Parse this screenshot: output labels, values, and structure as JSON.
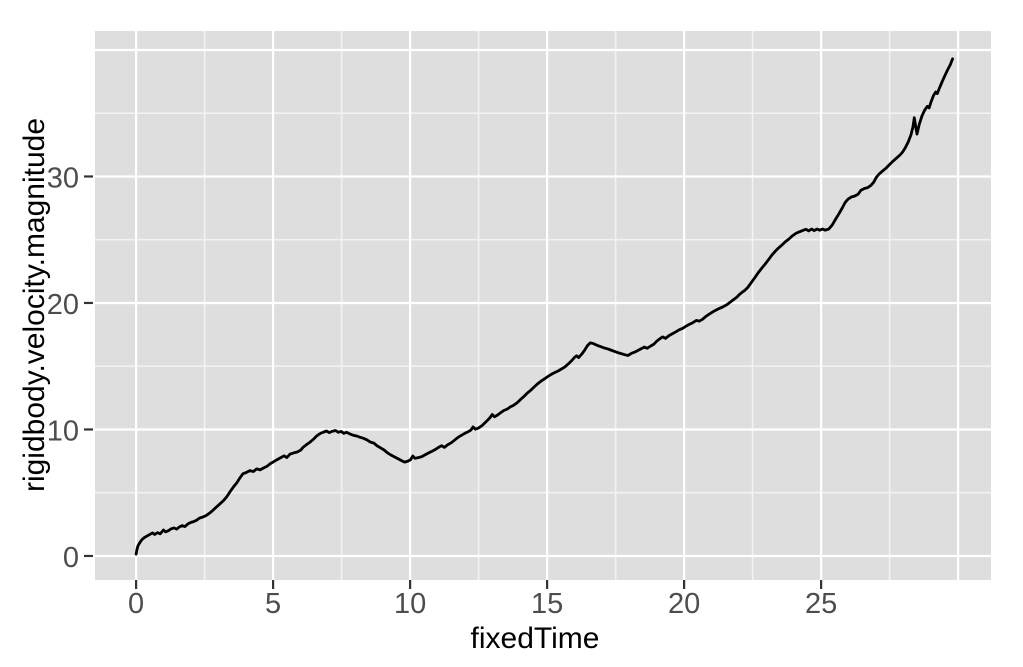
{
  "chart_data": {
    "type": "line",
    "title": "",
    "xlabel": "fixedTime",
    "ylabel": "rigidbody.velocity.magnitude",
    "legend": "none",
    "grid": "on",
    "xlim": [
      -1.5,
      31.2
    ],
    "ylim": [
      -1.9,
      41.5
    ],
    "x_ticks": {
      "values": [
        0,
        5,
        10,
        15,
        20,
        25
      ],
      "labels": [
        "0",
        "5",
        "10",
        "15",
        "20",
        "25"
      ]
    },
    "y_ticks": {
      "values": [
        0,
        10,
        20,
        30
      ],
      "labels": [
        "0",
        "10",
        "20",
        "30"
      ]
    },
    "x_grid_major": [
      0,
      5,
      10,
      15,
      20,
      25,
      30
    ],
    "x_grid_minor": [
      2.5,
      7.5,
      12.5,
      17.5,
      22.5,
      27.5
    ],
    "y_grid_major": [
      0,
      10,
      20,
      30,
      40
    ],
    "y_grid_minor": [
      5,
      15,
      25,
      35
    ],
    "colors": {
      "panel_bg": "#dedede",
      "grid_major": "#ffffff",
      "grid_minor": "#f2f2f2",
      "line": "#000000",
      "tick_mark": "#333333",
      "tick_text": "#4d4d4d",
      "axis_title_text": "#000000",
      "page_bg": "#ffffff"
    },
    "series": [
      {
        "name": "rigidbody.velocity.magnitude",
        "points": [
          [
            0,
            0.15
          ],
          [
            0.03,
            0.5
          ],
          [
            0.07,
            0.8
          ],
          [
            0.12,
            1.0
          ],
          [
            0.2,
            1.26
          ],
          [
            0.3,
            1.45
          ],
          [
            0.42,
            1.6
          ],
          [
            0.52,
            1.72
          ],
          [
            0.6,
            1.82
          ],
          [
            0.68,
            1.7
          ],
          [
            0.78,
            1.85
          ],
          [
            0.88,
            1.75
          ],
          [
            1.0,
            2.05
          ],
          [
            1.08,
            1.9
          ],
          [
            1.18,
            2.0
          ],
          [
            1.28,
            2.15
          ],
          [
            1.38,
            2.22
          ],
          [
            1.48,
            2.12
          ],
          [
            1.58,
            2.3
          ],
          [
            1.68,
            2.4
          ],
          [
            1.78,
            2.32
          ],
          [
            1.9,
            2.55
          ],
          [
            2.0,
            2.65
          ],
          [
            2.1,
            2.72
          ],
          [
            2.2,
            2.82
          ],
          [
            2.32,
            3.0
          ],
          [
            2.44,
            3.08
          ],
          [
            2.56,
            3.2
          ],
          [
            2.68,
            3.38
          ],
          [
            2.8,
            3.6
          ],
          [
            2.92,
            3.85
          ],
          [
            3.05,
            4.1
          ],
          [
            3.18,
            4.35
          ],
          [
            3.3,
            4.65
          ],
          [
            3.42,
            5.05
          ],
          [
            3.55,
            5.45
          ],
          [
            3.68,
            5.8
          ],
          [
            3.78,
            6.15
          ],
          [
            3.9,
            6.5
          ],
          [
            4.02,
            6.6
          ],
          [
            4.15,
            6.75
          ],
          [
            4.28,
            6.68
          ],
          [
            4.4,
            6.88
          ],
          [
            4.52,
            6.8
          ],
          [
            4.65,
            6.95
          ],
          [
            4.78,
            7.1
          ],
          [
            4.9,
            7.3
          ],
          [
            5.02,
            7.45
          ],
          [
            5.15,
            7.62
          ],
          [
            5.28,
            7.78
          ],
          [
            5.4,
            7.92
          ],
          [
            5.5,
            7.78
          ],
          [
            5.62,
            8.05
          ],
          [
            5.75,
            8.15
          ],
          [
            5.88,
            8.22
          ],
          [
            6.0,
            8.35
          ],
          [
            6.1,
            8.6
          ],
          [
            6.22,
            8.8
          ],
          [
            6.35,
            9.0
          ],
          [
            6.48,
            9.25
          ],
          [
            6.6,
            9.5
          ],
          [
            6.72,
            9.68
          ],
          [
            6.85,
            9.8
          ],
          [
            6.95,
            9.88
          ],
          [
            7.05,
            9.75
          ],
          [
            7.15,
            9.85
          ],
          [
            7.28,
            9.92
          ],
          [
            7.38,
            9.78
          ],
          [
            7.48,
            9.85
          ],
          [
            7.58,
            9.7
          ],
          [
            7.68,
            9.78
          ],
          [
            7.8,
            9.65
          ],
          [
            7.92,
            9.55
          ],
          [
            8.05,
            9.48
          ],
          [
            8.18,
            9.38
          ],
          [
            8.3,
            9.3
          ],
          [
            8.42,
            9.18
          ],
          [
            8.55,
            9.0
          ],
          [
            8.68,
            8.92
          ],
          [
            8.8,
            8.7
          ],
          [
            8.92,
            8.55
          ],
          [
            9.05,
            8.38
          ],
          [
            9.18,
            8.15
          ],
          [
            9.3,
            7.98
          ],
          [
            9.42,
            7.85
          ],
          [
            9.55,
            7.7
          ],
          [
            9.68,
            7.55
          ],
          [
            9.8,
            7.42
          ],
          [
            9.92,
            7.5
          ],
          [
            10.02,
            7.62
          ],
          [
            10.1,
            7.9
          ],
          [
            10.18,
            7.72
          ],
          [
            10.3,
            7.78
          ],
          [
            10.42,
            7.85
          ],
          [
            10.55,
            8.0
          ],
          [
            10.68,
            8.15
          ],
          [
            10.8,
            8.28
          ],
          [
            10.92,
            8.42
          ],
          [
            11.05,
            8.6
          ],
          [
            11.15,
            8.72
          ],
          [
            11.25,
            8.58
          ],
          [
            11.38,
            8.8
          ],
          [
            11.5,
            8.95
          ],
          [
            11.62,
            9.15
          ],
          [
            11.75,
            9.38
          ],
          [
            11.88,
            9.55
          ],
          [
            12.0,
            9.7
          ],
          [
            12.12,
            9.82
          ],
          [
            12.22,
            9.95
          ],
          [
            12.3,
            10.2
          ],
          [
            12.38,
            10.02
          ],
          [
            12.5,
            10.12
          ],
          [
            12.62,
            10.3
          ],
          [
            12.72,
            10.5
          ],
          [
            12.82,
            10.72
          ],
          [
            12.92,
            10.95
          ],
          [
            13.0,
            11.18
          ],
          [
            13.08,
            11.0
          ],
          [
            13.2,
            11.15
          ],
          [
            13.3,
            11.32
          ],
          [
            13.42,
            11.5
          ],
          [
            13.55,
            11.62
          ],
          [
            13.65,
            11.78
          ],
          [
            13.78,
            11.92
          ],
          [
            13.9,
            12.1
          ],
          [
            14.02,
            12.35
          ],
          [
            14.15,
            12.6
          ],
          [
            14.28,
            12.88
          ],
          [
            14.4,
            13.1
          ],
          [
            14.52,
            13.35
          ],
          [
            14.65,
            13.6
          ],
          [
            14.78,
            13.82
          ],
          [
            14.9,
            14.0
          ],
          [
            15.02,
            14.18
          ],
          [
            15.15,
            14.35
          ],
          [
            15.28,
            14.5
          ],
          [
            15.4,
            14.62
          ],
          [
            15.52,
            14.78
          ],
          [
            15.65,
            14.95
          ],
          [
            15.78,
            15.2
          ],
          [
            15.9,
            15.45
          ],
          [
            16.0,
            15.7
          ],
          [
            16.08,
            15.82
          ],
          [
            16.15,
            15.68
          ],
          [
            16.28,
            16.0
          ],
          [
            16.38,
            16.3
          ],
          [
            16.48,
            16.65
          ],
          [
            16.58,
            16.85
          ],
          [
            16.7,
            16.78
          ],
          [
            16.82,
            16.65
          ],
          [
            16.95,
            16.55
          ],
          [
            17.08,
            16.45
          ],
          [
            17.2,
            16.38
          ],
          [
            17.32,
            16.28
          ],
          [
            17.45,
            16.18
          ],
          [
            17.58,
            16.08
          ],
          [
            17.7,
            16.0
          ],
          [
            17.85,
            15.9
          ],
          [
            17.95,
            15.85
          ],
          [
            18.08,
            16.02
          ],
          [
            18.2,
            16.12
          ],
          [
            18.32,
            16.25
          ],
          [
            18.45,
            16.4
          ],
          [
            18.55,
            16.52
          ],
          [
            18.65,
            16.42
          ],
          [
            18.78,
            16.6
          ],
          [
            18.9,
            16.75
          ],
          [
            19.0,
            16.98
          ],
          [
            19.12,
            17.18
          ],
          [
            19.22,
            17.32
          ],
          [
            19.32,
            17.2
          ],
          [
            19.45,
            17.42
          ],
          [
            19.58,
            17.58
          ],
          [
            19.7,
            17.72
          ],
          [
            19.82,
            17.88
          ],
          [
            19.95,
            18.0
          ],
          [
            20.08,
            18.18
          ],
          [
            20.2,
            18.32
          ],
          [
            20.32,
            18.45
          ],
          [
            20.45,
            18.62
          ],
          [
            20.55,
            18.56
          ],
          [
            20.68,
            18.72
          ],
          [
            20.8,
            18.95
          ],
          [
            20.92,
            19.12
          ],
          [
            21.05,
            19.3
          ],
          [
            21.18,
            19.45
          ],
          [
            21.3,
            19.58
          ],
          [
            21.42,
            19.7
          ],
          [
            21.55,
            19.85
          ],
          [
            21.68,
            20.05
          ],
          [
            21.8,
            20.25
          ],
          [
            21.92,
            20.45
          ],
          [
            22.02,
            20.68
          ],
          [
            22.12,
            20.85
          ],
          [
            22.22,
            21.0
          ],
          [
            22.32,
            21.22
          ],
          [
            22.45,
            21.6
          ],
          [
            22.58,
            22.0
          ],
          [
            22.7,
            22.38
          ],
          [
            22.82,
            22.72
          ],
          [
            22.95,
            23.05
          ],
          [
            23.08,
            23.42
          ],
          [
            23.2,
            23.78
          ],
          [
            23.32,
            24.08
          ],
          [
            23.45,
            24.35
          ],
          [
            23.58,
            24.6
          ],
          [
            23.7,
            24.85
          ],
          [
            23.82,
            25.05
          ],
          [
            23.95,
            25.3
          ],
          [
            24.08,
            25.5
          ],
          [
            24.2,
            25.62
          ],
          [
            24.32,
            25.72
          ],
          [
            24.45,
            25.82
          ],
          [
            24.55,
            25.7
          ],
          [
            24.65,
            25.85
          ],
          [
            24.75,
            25.72
          ],
          [
            24.85,
            25.85
          ],
          [
            24.95,
            25.75
          ],
          [
            25.05,
            25.85
          ],
          [
            25.15,
            25.75
          ],
          [
            25.28,
            25.85
          ],
          [
            25.4,
            26.15
          ],
          [
            25.52,
            26.6
          ],
          [
            25.65,
            27.05
          ],
          [
            25.78,
            27.55
          ],
          [
            25.88,
            27.95
          ],
          [
            25.98,
            28.2
          ],
          [
            26.1,
            28.38
          ],
          [
            26.22,
            28.45
          ],
          [
            26.35,
            28.6
          ],
          [
            26.45,
            28.9
          ],
          [
            26.58,
            29.05
          ],
          [
            26.7,
            29.12
          ],
          [
            26.82,
            29.3
          ],
          [
            26.92,
            29.55
          ],
          [
            27.02,
            29.95
          ],
          [
            27.12,
            30.2
          ],
          [
            27.25,
            30.45
          ],
          [
            27.38,
            30.68
          ],
          [
            27.5,
            30.95
          ],
          [
            27.62,
            31.2
          ],
          [
            27.75,
            31.45
          ],
          [
            27.88,
            31.7
          ],
          [
            27.98,
            31.95
          ],
          [
            28.08,
            32.3
          ],
          [
            28.18,
            32.75
          ],
          [
            28.28,
            33.3
          ],
          [
            28.35,
            33.9
          ],
          [
            28.4,
            34.65
          ],
          [
            28.45,
            34.0
          ],
          [
            28.5,
            33.35
          ],
          [
            28.58,
            34.1
          ],
          [
            28.68,
            34.8
          ],
          [
            28.78,
            35.25
          ],
          [
            28.88,
            35.55
          ],
          [
            28.94,
            35.42
          ],
          [
            29.02,
            35.95
          ],
          [
            29.1,
            36.4
          ],
          [
            29.18,
            36.68
          ],
          [
            29.24,
            36.55
          ],
          [
            29.32,
            37.0
          ],
          [
            29.42,
            37.5
          ],
          [
            29.52,
            38.0
          ],
          [
            29.62,
            38.45
          ],
          [
            29.72,
            38.85
          ],
          [
            29.8,
            39.3
          ]
        ]
      }
    ]
  }
}
